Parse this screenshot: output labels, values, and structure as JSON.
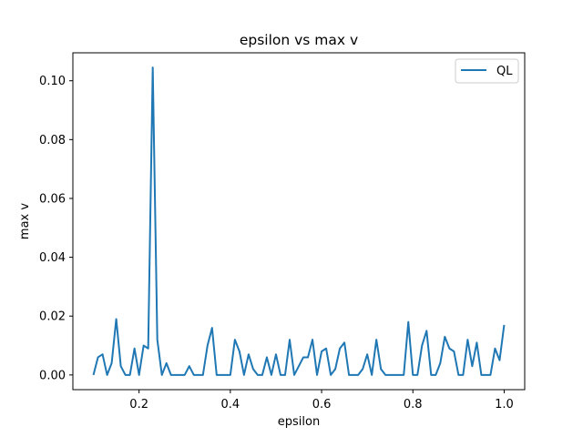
{
  "chart_data": {
    "type": "line",
    "title": "epsilon vs max v",
    "xlabel": "epsilon",
    "ylabel": "max v",
    "xlim": [
      0.055,
      1.045
    ],
    "ylim": [
      -0.005,
      0.1095
    ],
    "xticks": [
      0.2,
      0.4,
      0.6,
      0.8,
      1.0
    ],
    "xtick_labels": [
      "0.2",
      "0.4",
      "0.6",
      "0.8",
      "1.0"
    ],
    "yticks": [
      0.0,
      0.02,
      0.04,
      0.06,
      0.08,
      0.1
    ],
    "ytick_labels": [
      "0.00",
      "0.02",
      "0.04",
      "0.06",
      "0.08",
      "0.10"
    ],
    "grid": false,
    "legend_position": "top-right",
    "series": [
      {
        "name": "QL",
        "color": "#1f77b4",
        "x": [
          0.1,
          0.11,
          0.12,
          0.13,
          0.14,
          0.15,
          0.16,
          0.17,
          0.18,
          0.19,
          0.2,
          0.21,
          0.22,
          0.23,
          0.24,
          0.25,
          0.26,
          0.27,
          0.28,
          0.29,
          0.3,
          0.31,
          0.32,
          0.33,
          0.34,
          0.35,
          0.36,
          0.37,
          0.38,
          0.39,
          0.4,
          0.41,
          0.42,
          0.43,
          0.44,
          0.45,
          0.46,
          0.47,
          0.48,
          0.49,
          0.5,
          0.51,
          0.52,
          0.53,
          0.54,
          0.55,
          0.56,
          0.57,
          0.58,
          0.59,
          0.6,
          0.61,
          0.62,
          0.63,
          0.64,
          0.65,
          0.66,
          0.67,
          0.68,
          0.69,
          0.7,
          0.71,
          0.72,
          0.73,
          0.74,
          0.75,
          0.76,
          0.77,
          0.78,
          0.79,
          0.8,
          0.81,
          0.82,
          0.83,
          0.84,
          0.85,
          0.86,
          0.87,
          0.88,
          0.89,
          0.9,
          0.91,
          0.92,
          0.93,
          0.94,
          0.95,
          0.96,
          0.97,
          0.98,
          0.99,
          1.0
        ],
        "values": [
          0.0,
          0.006,
          0.007,
          0.0,
          0.004,
          0.019,
          0.003,
          0.0,
          0.0,
          0.009,
          0.0,
          0.01,
          0.009,
          0.1045,
          0.012,
          0.0,
          0.004,
          0.0,
          0.0,
          0.0,
          0.0,
          0.003,
          0.0,
          0.0,
          0.0,
          0.01,
          0.016,
          0.0,
          0.0,
          0.0,
          0.0,
          0.012,
          0.008,
          0.0,
          0.007,
          0.002,
          0.0,
          0.0,
          0.006,
          0.0,
          0.007,
          0.0,
          0.0,
          0.012,
          0.0,
          0.003,
          0.006,
          0.006,
          0.012,
          0.0,
          0.008,
          0.009,
          0.0,
          0.002,
          0.009,
          0.011,
          0.0,
          0.0,
          0.0,
          0.002,
          0.007,
          0.0,
          0.012,
          0.002,
          0.0,
          0.0,
          0.0,
          0.0,
          0.0,
          0.018,
          0.0,
          0.0,
          0.01,
          0.015,
          0.0,
          0.0,
          0.004,
          0.013,
          0.009,
          0.008,
          0.0,
          0.0,
          0.012,
          0.003,
          0.011,
          0.0,
          0.0,
          0.0,
          0.009,
          0.005,
          0.017
        ]
      }
    ]
  }
}
